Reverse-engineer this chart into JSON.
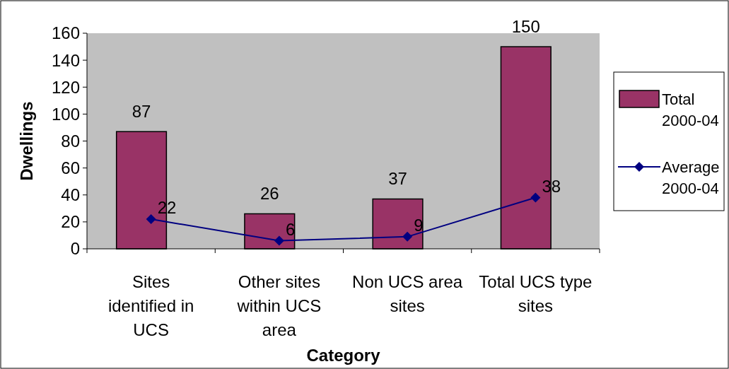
{
  "chart_data": {
    "type": "bar",
    "xlabel": "Category",
    "ylabel": "Dwellings",
    "categories": [
      "Sites identified in UCS",
      "Other sites within UCS area",
      "Non UCS area sites",
      "Total UCS type sites"
    ],
    "series": [
      {
        "name": "Total 2000-04",
        "color": "#993366",
        "values": [
          87,
          26,
          37,
          150
        ]
      },
      {
        "name": "Average 2000-04",
        "type": "line",
        "color": "#000080",
        "values": [
          22,
          6,
          9,
          38
        ]
      }
    ],
    "ylim": [
      0,
      160
    ],
    "yticks": [
      0,
      20,
      40,
      60,
      80,
      100,
      120,
      140,
      160
    ],
    "data_labels": true,
    "legend": "right",
    "marker": "diamond",
    "grid": false
  }
}
